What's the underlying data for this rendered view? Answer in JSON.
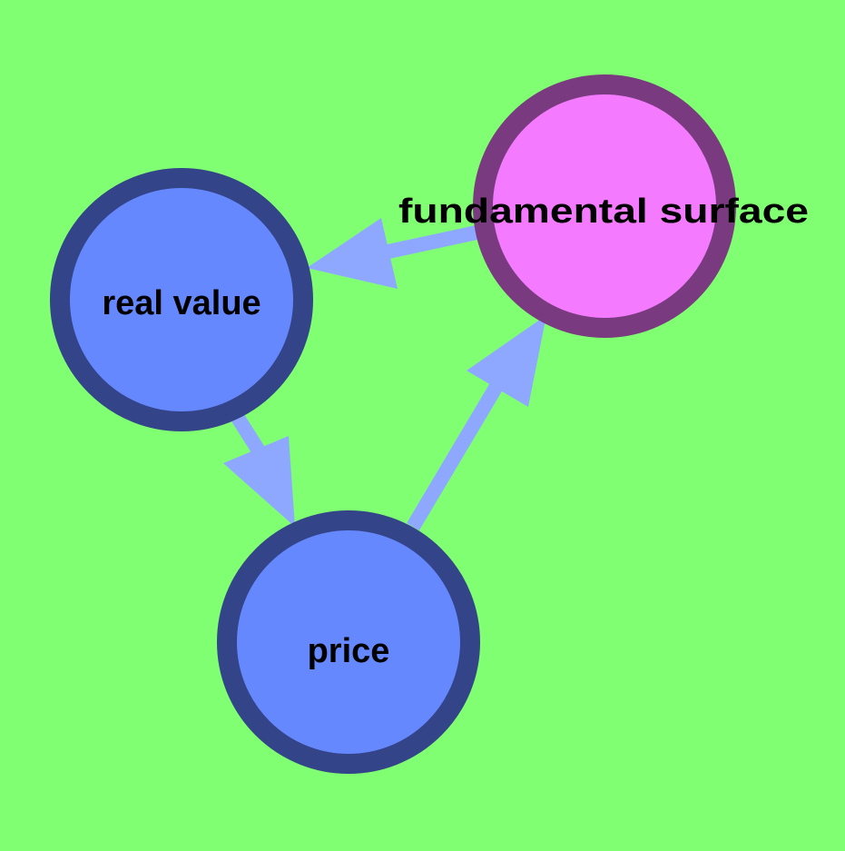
{
  "colors": {
    "background": "#80ff72",
    "edge": "#8fa8ff",
    "node_blue_fill": "#6688ff",
    "node_blue_stroke": "#334488",
    "node_pink_fill": "#f47bff",
    "node_pink_stroke": "#7a3a7f"
  },
  "nodes": {
    "real_value": {
      "label": "real value"
    },
    "price": {
      "label": "price"
    },
    "fundamental_surface": {
      "label": "fundamental surface"
    }
  },
  "edges": [
    {
      "from": "fundamental_surface",
      "to": "real_value"
    },
    {
      "from": "real_value",
      "to": "price"
    },
    {
      "from": "price",
      "to": "fundamental_surface"
    }
  ]
}
